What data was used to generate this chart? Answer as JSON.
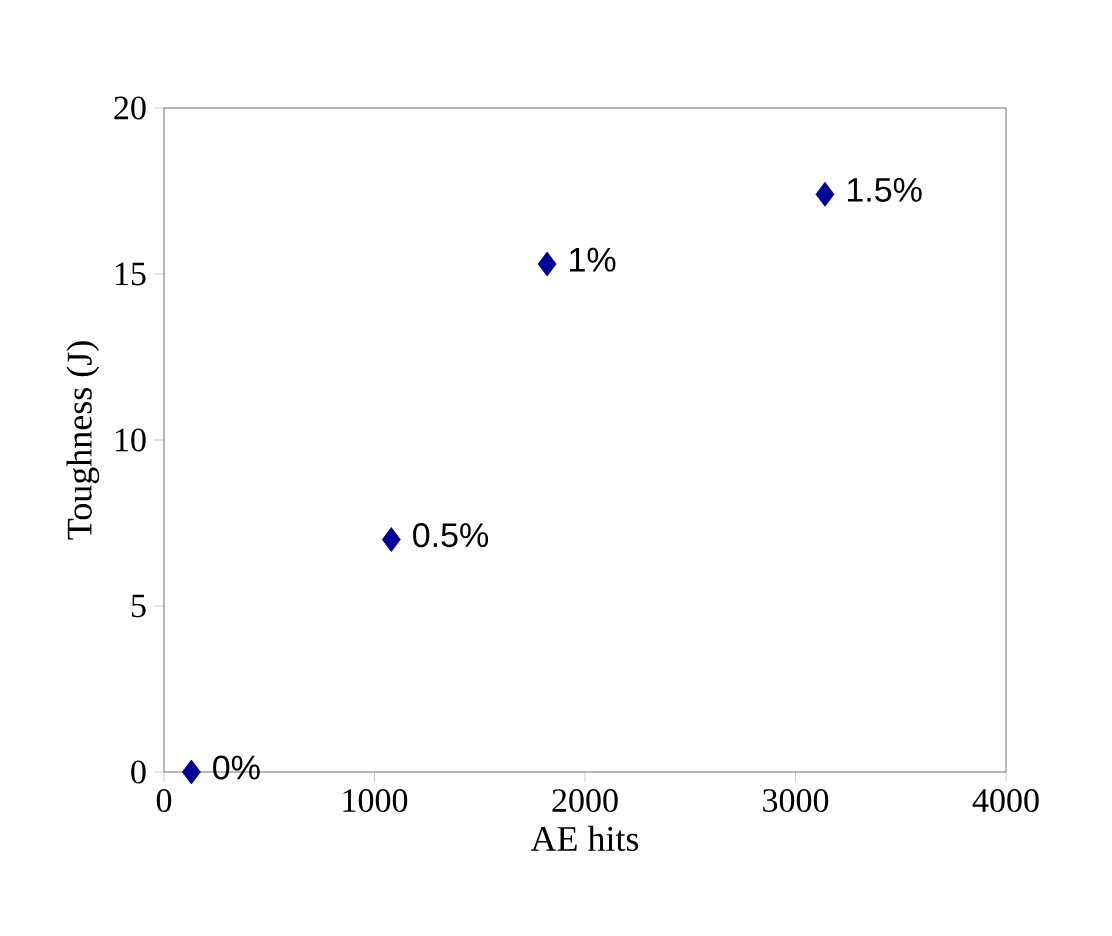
{
  "chart_data": {
    "type": "scatter",
    "xlabel": "AE hits",
    "ylabel": "Toughness (J)",
    "x": [
      130,
      1080,
      1820,
      3140
    ],
    "series": [
      {
        "color": "#000099",
        "values": [
          0,
          7,
          15.3,
          17.4
        ]
      }
    ],
    "marker": "diamond",
    "grid": false,
    "xlim": [
      0,
      4000
    ],
    "ylim": [
      0,
      20
    ],
    "xticks": [
      0,
      1000,
      2000,
      3000,
      4000
    ],
    "yticks": [
      0,
      5,
      10,
      15,
      20
    ],
    "annotations": [
      {
        "text": "0%",
        "x": 130,
        "y": 0
      },
      {
        "text": "0.5%",
        "x": 1080,
        "y": 7
      },
      {
        "text": "1%",
        "x": 1820,
        "y": 15.3
      },
      {
        "text": "1.5%",
        "x": 3140,
        "y": 17.4
      }
    ]
  }
}
